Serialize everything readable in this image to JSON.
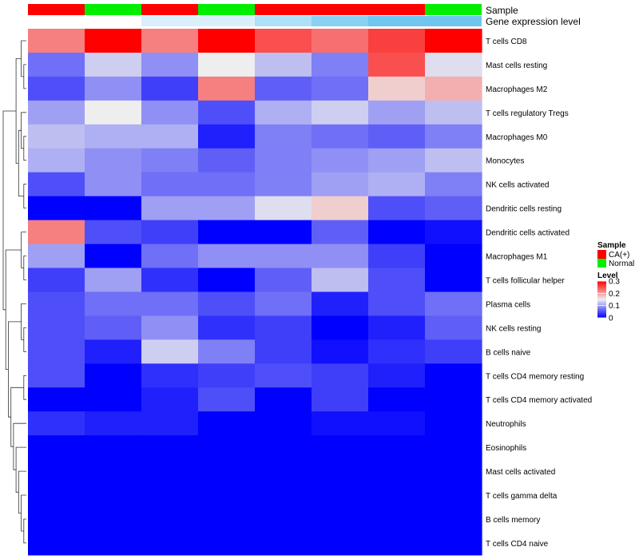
{
  "chart_data": {
    "type": "heatmap",
    "title": "",
    "annotation_tracks": [
      {
        "name": "Sample",
        "values": [
          "CA(+)",
          "Normal",
          "CA(+)",
          "Normal",
          "CA(+)",
          "CA(+)",
          "CA(+)",
          "Normal"
        ]
      },
      {
        "name": "Gene expression level",
        "values": [
          0.0,
          0.0,
          0.05,
          0.05,
          0.1,
          0.15,
          0.2,
          0.2
        ]
      }
    ],
    "rows": [
      "T cells CD8",
      "Mast cells resting",
      "Macrophages M2",
      "T cells regulatory  Tregs",
      "Macrophages M0",
      "Monocytes",
      "NK cells activated",
      "Dendritic cells resting",
      "Dendritic cells activated",
      "Macrophages M1",
      "T cells follicular helper",
      "Plasma cells",
      "NK cells resting",
      "B cells naive",
      "T cells CD4 memory resting",
      "T cells CD4 memory activated",
      "Neutrophils",
      "Eosinophils",
      "Mast cells activated",
      "T cells gamma delta",
      "B cells memory",
      "T cells CD4 naive"
    ],
    "values": [
      [
        0.22,
        0.3,
        0.22,
        0.3,
        0.25,
        0.23,
        0.26,
        0.3
      ],
      [
        0.07,
        0.13,
        0.09,
        0.15,
        0.12,
        0.08,
        0.25,
        0.14
      ],
      [
        0.05,
        0.09,
        0.04,
        0.22,
        0.06,
        0.07,
        0.17,
        0.19
      ],
      [
        0.1,
        0.15,
        0.09,
        0.05,
        0.11,
        0.13,
        0.1,
        0.12
      ],
      [
        0.12,
        0.11,
        0.11,
        0.02,
        0.08,
        0.07,
        0.06,
        0.08
      ],
      [
        0.11,
        0.09,
        0.08,
        0.06,
        0.08,
        0.09,
        0.1,
        0.12
      ],
      [
        0.05,
        0.09,
        0.07,
        0.07,
        0.08,
        0.1,
        0.11,
        0.08
      ],
      [
        0.0,
        0.0,
        0.1,
        0.1,
        0.14,
        0.17,
        0.05,
        0.06
      ],
      [
        0.22,
        0.05,
        0.04,
        0.0,
        0.0,
        0.06,
        0.0,
        0.01
      ],
      [
        0.1,
        0.0,
        0.07,
        0.09,
        0.09,
        0.09,
        0.04,
        0.0
      ],
      [
        0.04,
        0.1,
        0.03,
        0.0,
        0.06,
        0.12,
        0.05,
        0.0
      ],
      [
        0.05,
        0.07,
        0.07,
        0.05,
        0.07,
        0.02,
        0.05,
        0.07
      ],
      [
        0.05,
        0.06,
        0.09,
        0.03,
        0.04,
        0.0,
        0.02,
        0.06
      ],
      [
        0.05,
        0.02,
        0.13,
        0.08,
        0.04,
        0.01,
        0.03,
        0.04
      ],
      [
        0.05,
        0.0,
        0.03,
        0.04,
        0.05,
        0.04,
        0.02,
        0.0
      ],
      [
        0.0,
        0.0,
        0.02,
        0.05,
        0.0,
        0.04,
        0.0,
        0.0
      ],
      [
        0.03,
        0.02,
        0.02,
        0.0,
        0.0,
        0.01,
        0.01,
        0.0
      ],
      [
        0.0,
        0.0,
        0.0,
        0.0,
        0.0,
        0.0,
        0.0,
        0.0
      ],
      [
        0.0,
        0.0,
        0.0,
        0.0,
        0.0,
        0.0,
        0.0,
        0.0
      ],
      [
        0.0,
        0.0,
        0.0,
        0.0,
        0.0,
        0.0,
        0.0,
        0.0
      ],
      [
        0.0,
        0.0,
        0.0,
        0.0,
        0.0,
        0.0,
        0.0,
        0.0
      ],
      [
        0.0,
        0.0,
        0.0,
        0.0,
        0.0,
        0.0,
        0.0,
        0.0
      ]
    ],
    "color_scale": {
      "stops": [
        {
          "value": 0.0,
          "color": "#0000ff"
        },
        {
          "value": 0.15,
          "color": "#eeeeee"
        },
        {
          "value": 0.3,
          "color": "#ff0000"
        }
      ]
    },
    "legend_sample": {
      "title": "Sample",
      "entries": [
        {
          "label": "CA(+)",
          "color": "#ff0000"
        },
        {
          "label": "Normal",
          "color": "#00ee00"
        }
      ]
    },
    "legend_level": {
      "title": "Level",
      "ticks": [
        "0.3",
        "0.2",
        "0.1",
        "0"
      ],
      "tick_values": [
        0.3,
        0.2,
        0.1,
        0.0
      ]
    },
    "gene_track_colors": [
      "#ffffff",
      "#ffffff",
      "#d9f0fa",
      "#d9f0fa",
      "#aee0f7",
      "#88d1f2",
      "#6fc6ef",
      "#6fc6ef"
    ],
    "dendrogram": "row-clustering",
    "legend_position": "right"
  }
}
